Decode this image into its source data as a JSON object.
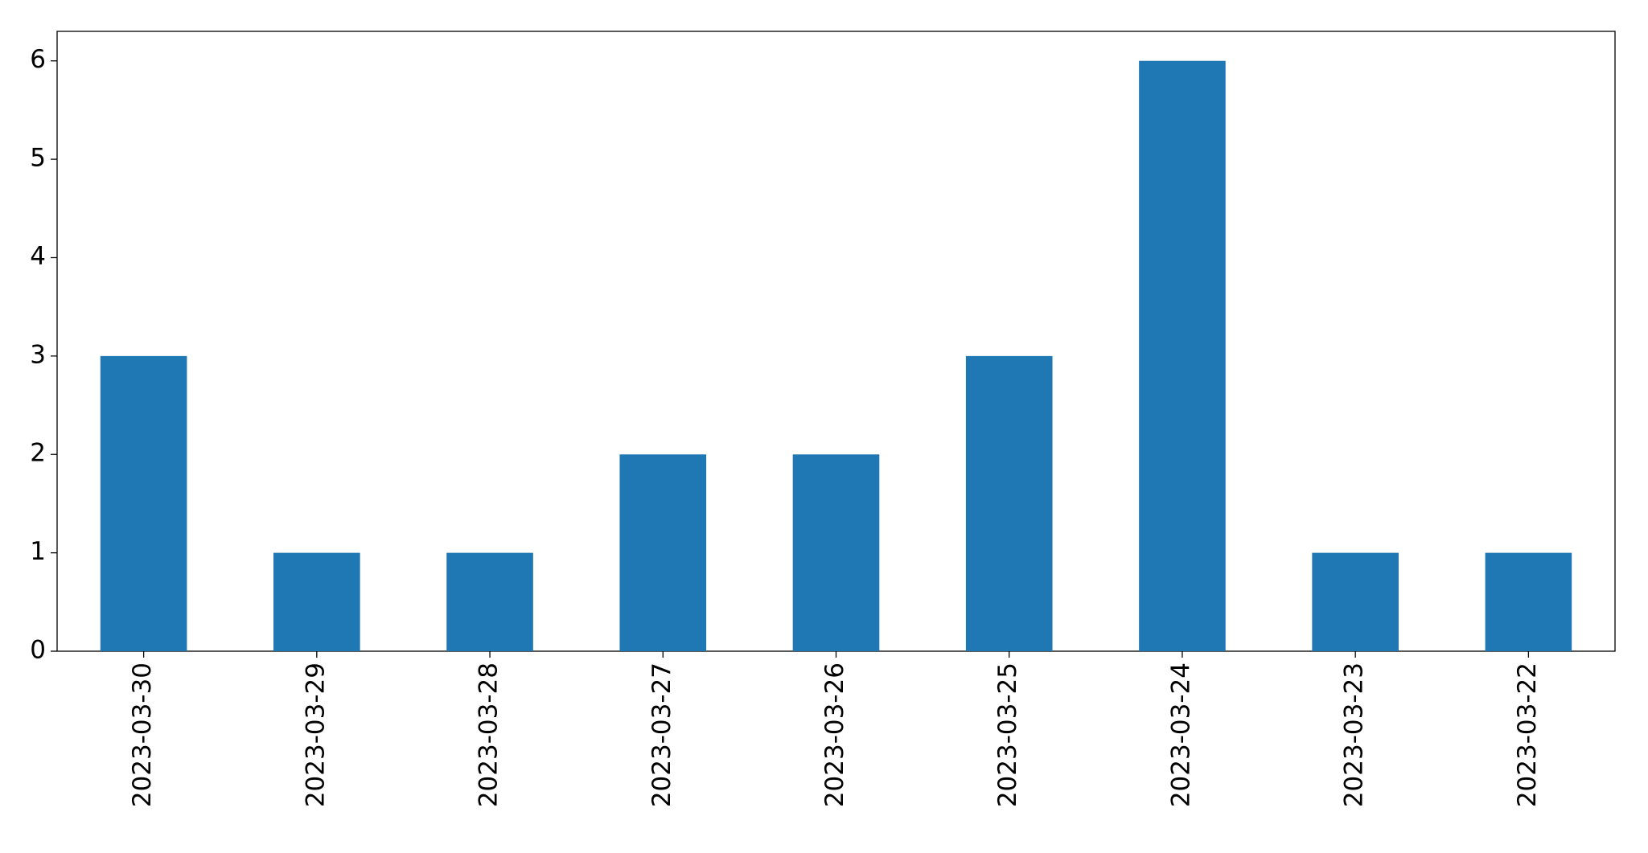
{
  "chart_data": {
    "type": "bar",
    "categories": [
      "2023-03-30",
      "2023-03-29",
      "2023-03-28",
      "2023-03-27",
      "2023-03-26",
      "2023-03-25",
      "2023-03-24",
      "2023-03-23",
      "2023-03-22"
    ],
    "values": [
      3,
      1,
      1,
      2,
      2,
      3,
      6,
      1,
      1
    ],
    "color": "#1f77b4",
    "ylim": [
      0,
      6.3
    ],
    "yticks": [
      0,
      1,
      2,
      3,
      4,
      5,
      6
    ],
    "grid": false
  }
}
